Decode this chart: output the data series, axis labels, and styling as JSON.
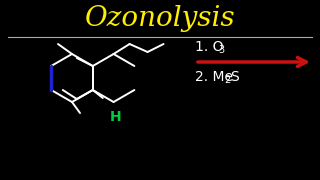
{
  "title": "Ozonolysis",
  "title_color": "#FFee00",
  "bg_color": "#000000",
  "line_color": "#ffffff",
  "arrow_color": "#cc1111",
  "blue_bond_color": "#2222cc",
  "green_h_color": "#00cc44",
  "font_size_title": 20,
  "font_size_steps": 10,
  "step1": "1. O",
  "step1_sub": "3",
  "step2_pre": "2. Me",
  "step2_sub": "2",
  "step2_post": "S"
}
